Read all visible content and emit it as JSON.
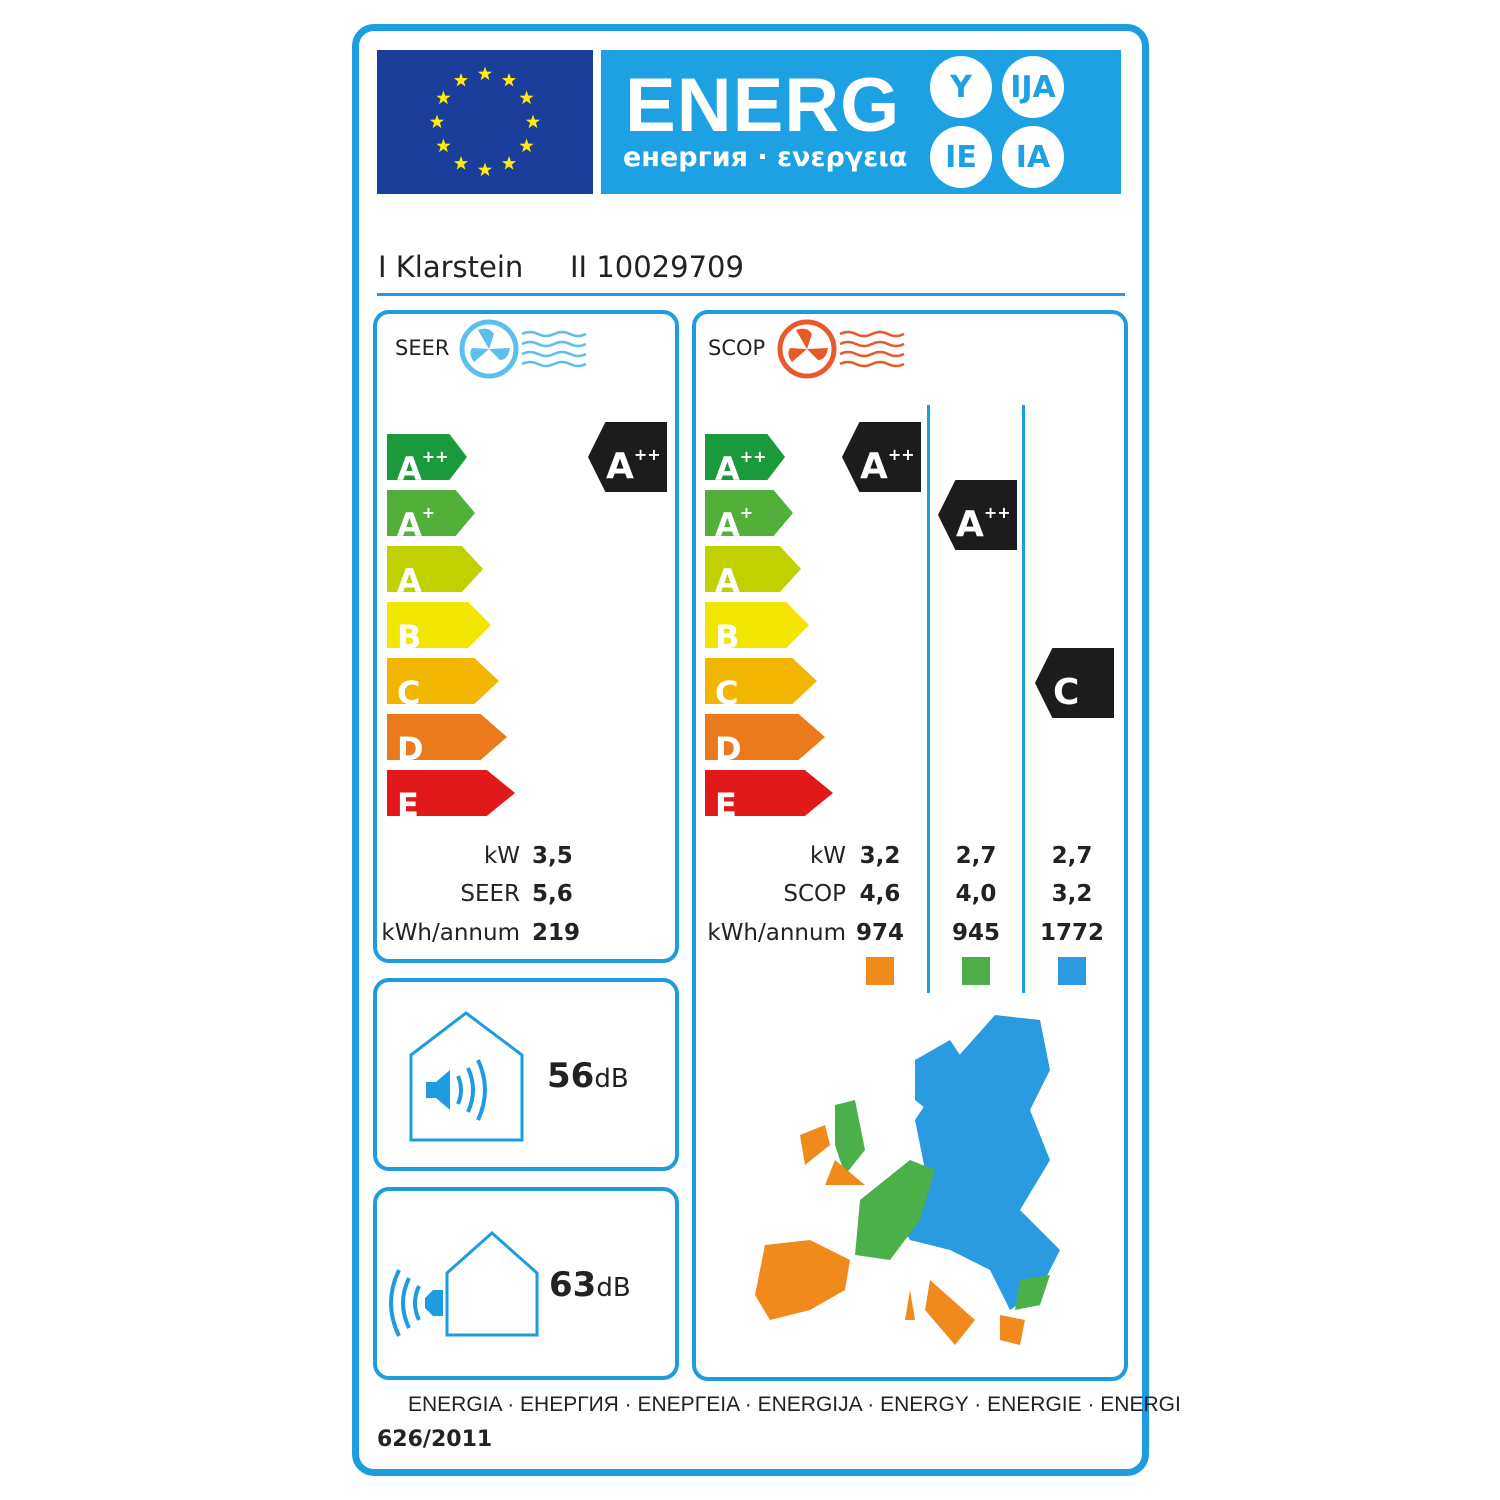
{
  "header": {
    "energ": "ENERG",
    "subtitle": "енергия · ενεργεια",
    "suffixes": [
      "Y",
      "IJA",
      "IE",
      "IA"
    ],
    "supplier": "I Klarstein",
    "model": "II 10029709"
  },
  "scale": [
    {
      "label": "A",
      "sup": "++",
      "color": "#1a9a3a"
    },
    {
      "label": "A",
      "sup": "+",
      "color": "#52b03a"
    },
    {
      "label": "A",
      "sup": "",
      "color": "#bfd100"
    },
    {
      "label": "B",
      "sup": "",
      "color": "#f2e500"
    },
    {
      "label": "C",
      "sup": "",
      "color": "#f2b600"
    },
    {
      "label": "D",
      "sup": "",
      "color": "#eb7a1d"
    },
    {
      "label": "E",
      "sup": "",
      "color": "#e2191b"
    }
  ],
  "cooling": {
    "title": "SEER",
    "class": "A",
    "class_sup": "++",
    "rows": [
      {
        "label": "kW",
        "value": "3,5"
      },
      {
        "label": "SEER",
        "value": "5,6"
      },
      {
        "label": "kWh/annum",
        "value": "219"
      }
    ]
  },
  "heating": {
    "title": "SCOP",
    "zones": [
      {
        "class": "A",
        "class_sup": "++",
        "color": "#f08a1c",
        "values": [
          "3,2",
          "4,6",
          "974"
        ]
      },
      {
        "class": "A",
        "class_sup": "++",
        "color": "#4cb04a",
        "values": [
          "2,7",
          "4,0",
          "945"
        ]
      },
      {
        "class": "C",
        "class_sup": "",
        "color": "#2a9be0",
        "values": [
          "2,7",
          "3,2",
          "1772"
        ]
      }
    ],
    "row_labels": [
      "kW",
      "SCOP",
      "kWh/annum"
    ]
  },
  "noise": {
    "indoor": "56",
    "outdoor": "63",
    "unit": "dB"
  },
  "footer": {
    "languages": "ENERGIA · ЕНЕРГИЯ · ΕΝΕΡΓΕΙΑ · ENERGIJA · ENERGY · ENERGIE · ENERGI",
    "regulation": "626/2011"
  }
}
